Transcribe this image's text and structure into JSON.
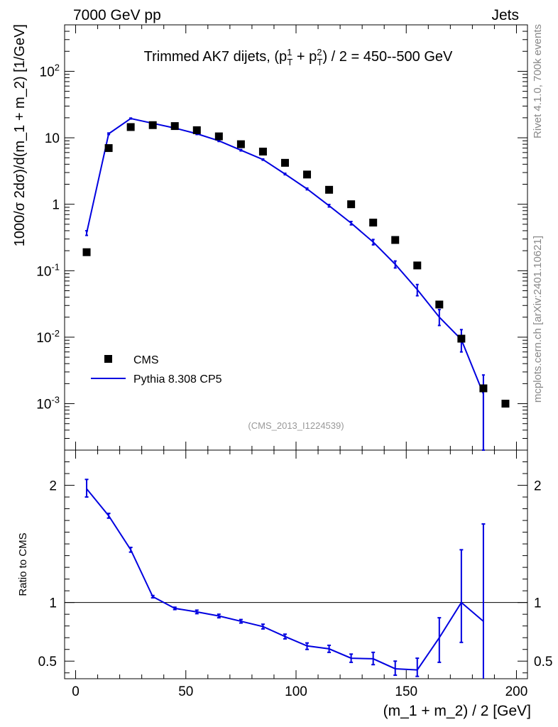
{
  "header": {
    "left": "7000 GeV pp",
    "right": "Jets"
  },
  "side_labels": {
    "rivet": "Rivet 4.1.0,  700k events",
    "mcplots": "mcplots.cern.ch [arXiv:2401.10621]"
  },
  "colors": {
    "data": "#000000",
    "mc": "#0000e0",
    "axis": "#000000",
    "watermark": "#999999"
  },
  "chart_data": [
    {
      "type": "scatter",
      "panel": "main",
      "title": {
        "prefix": "Trimmed AK7 dijets, (p",
        "sup1": "1",
        "sub1": "T",
        "mid": " + p",
        "sup2": "2",
        "sub2": "T",
        "suffix": ") / 2 = 450--500 GeV"
      },
      "ylabel": "1000/σ   2dσ)/d(m_1 + m_2) [1/GeV]",
      "yscale": "log",
      "ylim": [
        0.0002,
        500
      ],
      "xlim": [
        -5,
        205
      ],
      "y_ticks": [
        {
          "value": 0.001,
          "base": "10",
          "exp": "-3"
        },
        {
          "value": 0.01,
          "base": "10",
          "exp": "-2"
        },
        {
          "value": 0.1,
          "base": "10",
          "exp": "-1"
        },
        {
          "value": 1,
          "base": "1",
          "exp": ""
        },
        {
          "value": 10,
          "base": "10",
          "exp": ""
        },
        {
          "value": 100,
          "base": "10",
          "exp": "2"
        }
      ],
      "watermark": "(CMS_2013_I1224539)",
      "legend": {
        "placement": "lower-left",
        "entries": [
          {
            "label": "CMS",
            "marker": "square"
          },
          {
            "label": "Pythia 8.308 CP5",
            "marker": "line"
          }
        ]
      },
      "series": [
        {
          "name": "CMS",
          "x": [
            5,
            15,
            25,
            35,
            45,
            55,
            65,
            75,
            85,
            95,
            105,
            115,
            125,
            135,
            145,
            155,
            165,
            175,
            185,
            195
          ],
          "y": [
            0.19,
            7.0,
            14.5,
            15.5,
            15.0,
            13.0,
            10.5,
            8.0,
            6.2,
            4.2,
            2.8,
            1.65,
            1.0,
            0.53,
            0.29,
            0.12,
            0.031,
            0.0095,
            0.0017,
            0.001
          ]
        },
        {
          "name": "Pythia 8.308 CP5",
          "x": [
            5,
            15,
            25,
            35,
            45,
            55,
            65,
            75,
            85,
            95,
            105,
            115,
            125,
            135,
            145,
            155,
            165,
            175,
            185
          ],
          "y": [
            0.37,
            11.5,
            19.5,
            16.5,
            14.0,
            11.5,
            9.0,
            6.5,
            4.7,
            2.85,
            1.7,
            0.95,
            0.52,
            0.27,
            0.125,
            0.052,
            0.02,
            0.0092,
            0.0014
          ],
          "err_lo": [
            0.34,
            11.2,
            19.2,
            16.2,
            13.7,
            11.2,
            8.8,
            6.35,
            4.6,
            2.78,
            1.65,
            0.91,
            0.49,
            0.245,
            0.11,
            0.042,
            0.015,
            0.006,
            0.0002
          ],
          "err_hi": [
            0.4,
            11.8,
            19.8,
            16.8,
            14.3,
            11.8,
            9.2,
            6.65,
            4.8,
            2.92,
            1.75,
            0.99,
            0.55,
            0.295,
            0.14,
            0.062,
            0.026,
            0.013,
            0.0027
          ]
        }
      ]
    },
    {
      "type": "line",
      "panel": "ratio",
      "ylabel": "Ratio to CMS",
      "xlabel": "(m_1 + m_2) / 2 [GeV]",
      "ylim": [
        0.35,
        2.3
      ],
      "xlim": [
        -5,
        205
      ],
      "x_ticks": [
        0,
        50,
        100,
        150,
        200
      ],
      "y_ticks": [
        0.5,
        1,
        2
      ],
      "reference_line": 1,
      "series": [
        {
          "name": "Pythia 8.308 CP5",
          "x": [
            5,
            15,
            25,
            35,
            45,
            55,
            65,
            75,
            85,
            95,
            105,
            115,
            125,
            135,
            145,
            155,
            165,
            175,
            185
          ],
          "y": [
            1.97,
            1.74,
            1.45,
            1.05,
            0.95,
            0.92,
            0.885,
            0.84,
            0.795,
            0.71,
            0.63,
            0.605,
            0.525,
            0.52,
            0.435,
            0.425,
            0.7,
            1.0,
            0.84
          ],
          "err_lo": [
            1.9,
            1.72,
            1.43,
            1.04,
            0.94,
            0.905,
            0.87,
            0.825,
            0.775,
            0.69,
            0.6,
            0.575,
            0.49,
            0.47,
            0.38,
            0.37,
            0.49,
            0.66,
            0.35
          ],
          "err_hi": [
            2.05,
            1.76,
            1.47,
            1.06,
            0.96,
            0.935,
            0.9,
            0.855,
            0.815,
            0.73,
            0.655,
            0.635,
            0.56,
            0.575,
            0.5,
            0.525,
            0.87,
            1.45,
            1.67
          ]
        }
      ]
    }
  ]
}
